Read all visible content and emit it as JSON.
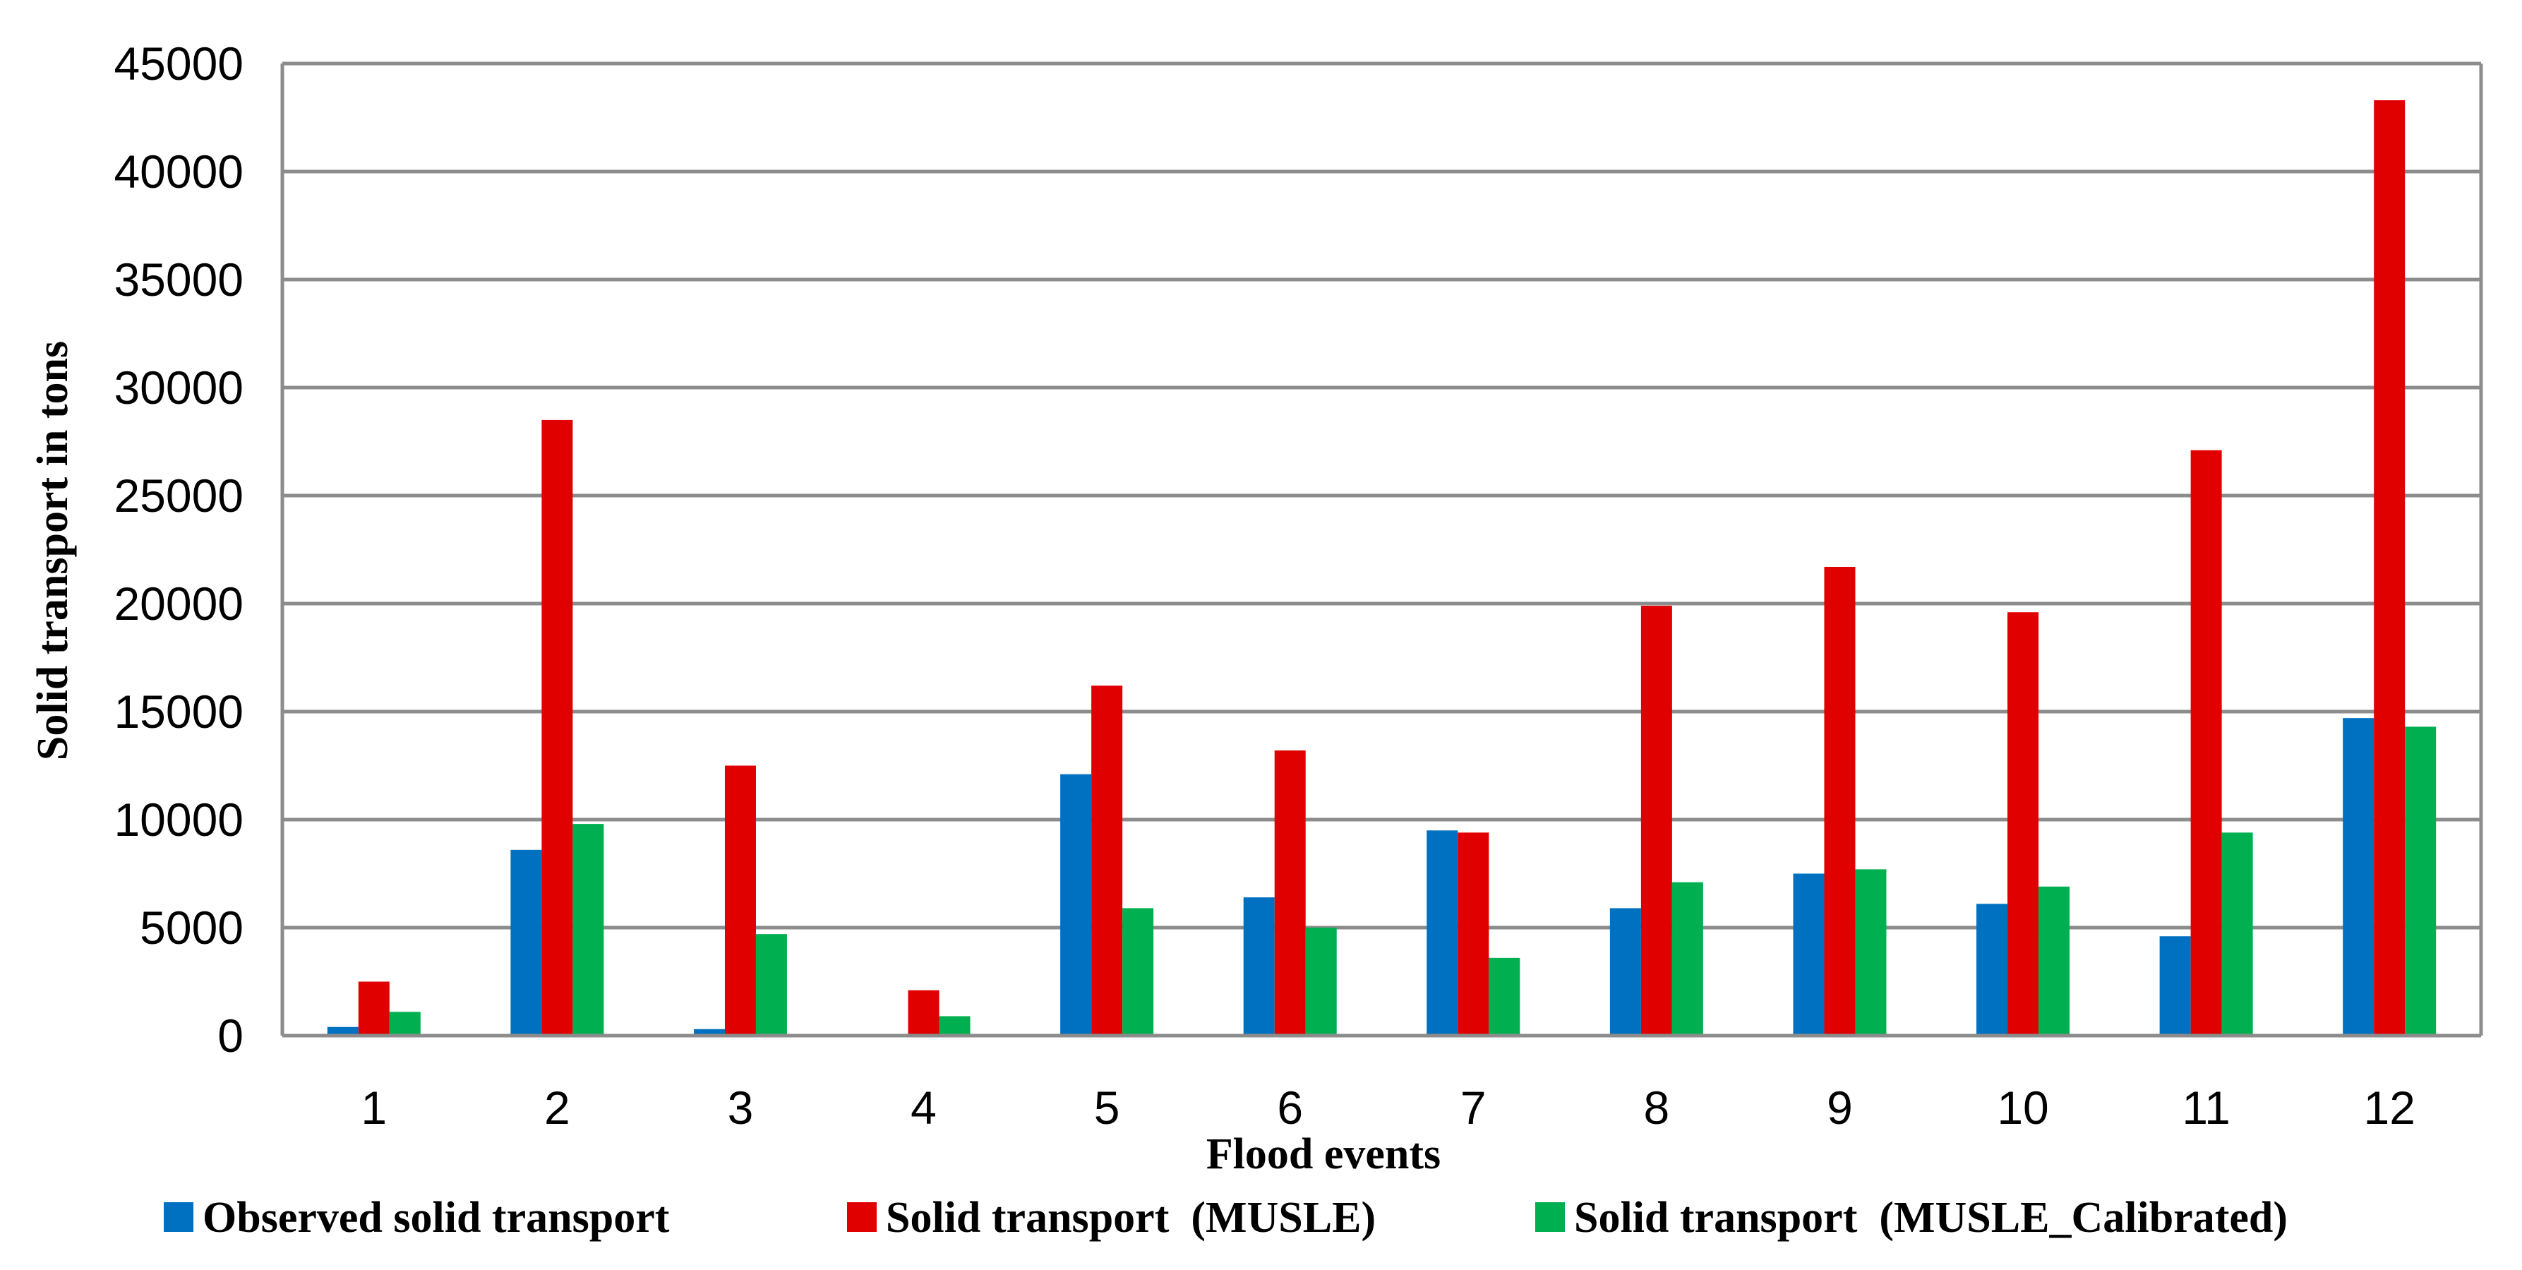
{
  "chart_data": {
    "type": "bar",
    "title": "",
    "xlabel": "Flood events",
    "ylabel": "Solid transport in tons",
    "categories": [
      "1",
      "2",
      "3",
      "4",
      "5",
      "6",
      "7",
      "8",
      "9",
      "10",
      "11",
      "12"
    ],
    "ylim": [
      0,
      45000
    ],
    "yticks": [
      "0",
      "5000",
      "10000",
      "15000",
      "20000",
      "25000",
      "30000",
      "35000",
      "40000",
      "45000"
    ],
    "grid": true,
    "legend_position": "bottom",
    "series": [
      {
        "name": "Observed solid transport",
        "color": "#0070c0",
        "values": [
          400,
          8600,
          300,
          0,
          12100,
          6400,
          9500,
          5900,
          7500,
          6100,
          4600,
          14700
        ]
      },
      {
        "name": "Solid transport  (MUSLE)",
        "color": "#e00000",
        "values": [
          2500,
          28500,
          12500,
          2100,
          16200,
          13200,
          9400,
          19900,
          21700,
          19600,
          27100,
          43300
        ]
      },
      {
        "name": "Solid transport  (MUSLE_Calibrated)",
        "color": "#00b050",
        "values": [
          1100,
          9800,
          4700,
          900,
          5900,
          5000,
          3600,
          7100,
          7700,
          6900,
          9400,
          14300
        ]
      }
    ]
  }
}
